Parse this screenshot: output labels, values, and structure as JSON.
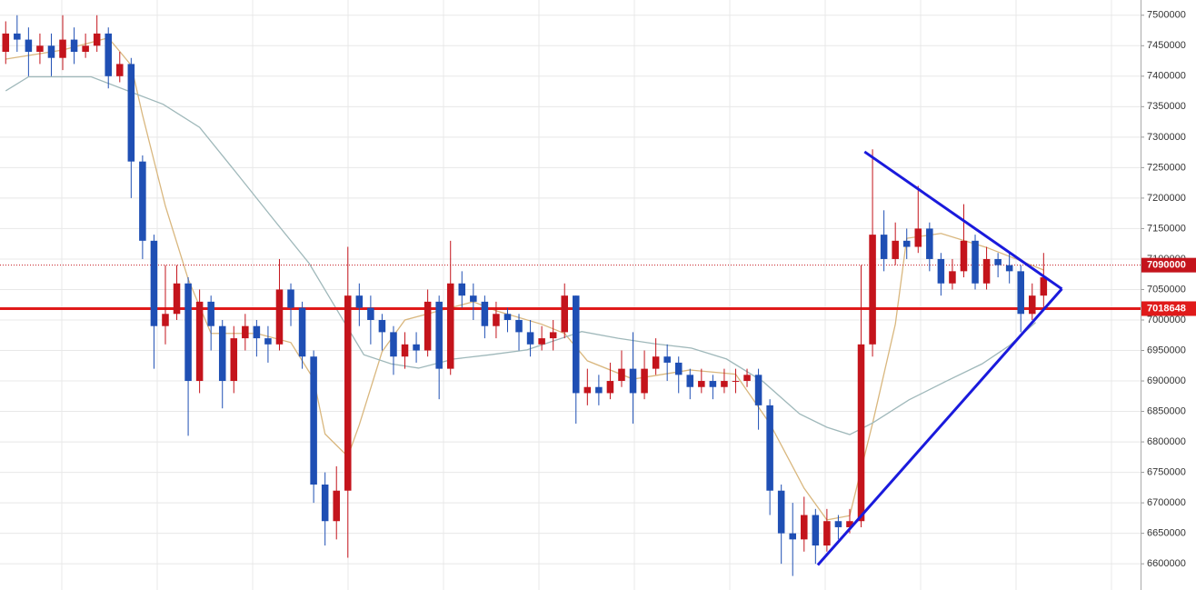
{
  "chart_data": {
    "type": "candlestick",
    "xlim": [
      -0.5,
      99.5
    ],
    "ylim": [
      6557000,
      7525000
    ],
    "yticks": [
      6600000,
      6650000,
      6700000,
      6750000,
      6800000,
      6850000,
      6900000,
      6950000,
      7000000,
      7050000,
      7100000,
      7150000,
      7200000,
      7250000,
      7300000,
      7350000,
      7400000,
      7450000,
      7500000
    ],
    "grid": true,
    "up_color": "#c4141c",
    "down_color": "#1f4fb4",
    "open": [
      7440000,
      7470000,
      7460000,
      7440000,
      7450000,
      7430000,
      7460000,
      7440000,
      7450000,
      7470000,
      7400000,
      7420000,
      7260000,
      7130000,
      6990000,
      7010000,
      7060000,
      6900000,
      7030000,
      6990000,
      6900000,
      6970000,
      6990000,
      6970000,
      6960000,
      7050000,
      7020000,
      6940000,
      6730000,
      6670000,
      6720000,
      7040000,
      7020000,
      7000000,
      6980000,
      6940000,
      6960000,
      6950000,
      7030000,
      6920000,
      7060000,
      7040000,
      7030000,
      6990000,
      7010000,
      7000000,
      6980000,
      6960000,
      6970000,
      6980000,
      7040000,
      6880000,
      6890000,
      6880000,
      6900000,
      6920000,
      6880000,
      6920000,
      6940000,
      6930000,
      6910000,
      6890000,
      6900000,
      6890000,
      6900000,
      6900000,
      6910000,
      6860000,
      6720000,
      6650000,
      6640000,
      6680000,
      6630000,
      6670000,
      6660000,
      6670000,
      6960000,
      7140000,
      7100000,
      7130000,
      7120000,
      7150000,
      7100000,
      7060000,
      7080000,
      7130000,
      7060000,
      7100000,
      7090000,
      7080000,
      7010000,
      7040000
    ],
    "high": [
      7490000,
      7500000,
      7480000,
      7470000,
      7470000,
      7500000,
      7480000,
      7470000,
      7500000,
      7480000,
      7440000,
      7430000,
      7270000,
      7140000,
      7090000,
      7090000,
      7070000,
      7050000,
      7040000,
      7000000,
      6990000,
      7010000,
      7000000,
      6990000,
      7100000,
      7060000,
      7030000,
      6950000,
      6750000,
      6760000,
      7120000,
      7060000,
      7040000,
      7010000,
      6990000,
      6980000,
      6980000,
      7050000,
      7040000,
      7130000,
      7080000,
      7060000,
      7040000,
      7030000,
      7020000,
      7010000,
      7000000,
      6990000,
      7000000,
      7060000,
      7040000,
      6920000,
      6910000,
      6930000,
      6950000,
      6980000,
      6950000,
      6970000,
      6960000,
      6940000,
      6920000,
      6920000,
      6910000,
      6920000,
      6920000,
      6920000,
      6920000,
      6870000,
      6730000,
      6700000,
      6710000,
      6690000,
      6690000,
      6680000,
      6690000,
      7090000,
      7280000,
      7180000,
      7160000,
      7150000,
      7220000,
      7160000,
      7110000,
      7100000,
      7190000,
      7140000,
      7120000,
      7110000,
      7110000,
      7090000,
      7060000,
      7110000
    ],
    "low": [
      7420000,
      7440000,
      7400000,
      7420000,
      7400000,
      7410000,
      7420000,
      7430000,
      7440000,
      7380000,
      7390000,
      7200000,
      7100000,
      6920000,
      6960000,
      7000000,
      6810000,
      6880000,
      6950000,
      6855000,
      6880000,
      6950000,
      6940000,
      6930000,
      6950000,
      6990000,
      6920000,
      6700000,
      6630000,
      6640000,
      6610000,
      6990000,
      6960000,
      6950000,
      6910000,
      6920000,
      6930000,
      6940000,
      6870000,
      6910000,
      7020000,
      7000000,
      6970000,
      6970000,
      6980000,
      6950000,
      6940000,
      6950000,
      6950000,
      6970000,
      6830000,
      6860000,
      6860000,
      6870000,
      6890000,
      6830000,
      6870000,
      6910000,
      6900000,
      6880000,
      6870000,
      6880000,
      6870000,
      6880000,
      6880000,
      6890000,
      6820000,
      6680000,
      6600000,
      6580000,
      6620000,
      6600000,
      6620000,
      6640000,
      6650000,
      6660000,
      6940000,
      7080000,
      7090000,
      7100000,
      7110000,
      7080000,
      7040000,
      7050000,
      7070000,
      7050000,
      7050000,
      7070000,
      7060000,
      6980000,
      7000000,
      7020000
    ],
    "close": [
      7470000,
      7460000,
      7440000,
      7450000,
      7430000,
      7460000,
      7440000,
      7450000,
      7470000,
      7400000,
      7420000,
      7260000,
      7130000,
      6990000,
      7010000,
      7060000,
      6900000,
      7030000,
      6990000,
      6900000,
      6970000,
      6990000,
      6970000,
      6960000,
      7050000,
      7020000,
      6940000,
      6730000,
      6670000,
      6720000,
      7040000,
      7020000,
      7000000,
      6980000,
      6940000,
      6960000,
      6950000,
      7030000,
      6920000,
      7060000,
      7040000,
      7030000,
      6990000,
      7010000,
      7000000,
      6980000,
      6960000,
      6970000,
      6980000,
      7040000,
      6880000,
      6890000,
      6880000,
      6900000,
      6920000,
      6880000,
      6920000,
      6940000,
      6930000,
      6910000,
      6890000,
      6900000,
      6890000,
      6900000,
      6900000,
      6910000,
      6860000,
      6720000,
      6650000,
      6640000,
      6680000,
      6630000,
      6670000,
      6660000,
      6670000,
      6960000,
      7140000,
      7100000,
      7130000,
      7120000,
      7150000,
      7100000,
      7060000,
      7080000,
      7130000,
      7060000,
      7100000,
      7090000,
      7080000,
      7010000,
      7040000,
      7070000
    ],
    "moving_averages": [
      {
        "color": "#d9b77e",
        "x": [
          0,
          5,
          9,
          11,
          12,
          14,
          16,
          18,
          22,
          25,
          27,
          28,
          30,
          31,
          33,
          35,
          38,
          41,
          43,
          47,
          49,
          51,
          55,
          60,
          64,
          67,
          70,
          72,
          74,
          76,
          78,
          79,
          82,
          86,
          89,
          91
        ],
        "values": [
          7428000,
          7443000,
          7463000,
          7418000,
          7336000,
          7187000,
          7067000,
          6978000,
          6978000,
          6963000,
          6903000,
          6813000,
          6776000,
          6828000,
          6948000,
          7000000,
          7015000,
          7030000,
          7015000,
          6993000,
          6978000,
          6933000,
          6903000,
          6918000,
          6911000,
          6830000,
          6724000,
          6672000,
          6679000,
          6830000,
          6993000,
          7134000,
          7142000,
          7119000,
          7097000,
          7082000
        ]
      },
      {
        "color": "#9fb8ba",
        "x": [
          0,
          2,
          7.5,
          10.7,
          13.8,
          17,
          20.2,
          23.4,
          26.6,
          29,
          31.4,
          33.8,
          36.2,
          39.3,
          42.5,
          45.7,
          48.1,
          50.5,
          53.7,
          56.9,
          60.1,
          63.2,
          66.4,
          69.6,
          72,
          74,
          76,
          79.2,
          82.4,
          85.6,
          88,
          90.3
        ],
        "values": [
          7376000,
          7399000,
          7399000,
          7376000,
          7354000,
          7316000,
          7242000,
          7167000,
          7093000,
          7018000,
          6943000,
          6928000,
          6921000,
          6936000,
          6943000,
          6951000,
          6966000,
          6981000,
          6970000,
          6961000,
          6954000,
          6936000,
          6899000,
          6846000,
          6824000,
          6812000,
          6831000,
          6869000,
          6899000,
          6928000,
          6958000,
          6996000
        ]
      }
    ],
    "price_lines": [
      {
        "value": 7090000,
        "style": "dotted",
        "color": "#c4141c"
      },
      {
        "value": 7018648,
        "style": "solid",
        "color": "#e01a1a"
      }
    ],
    "trendlines": {
      "color": "#1a1adc",
      "lines": [
        {
          "x": [
            71.2,
            92.6
          ],
          "y": [
            6598000,
            7051000
          ]
        },
        {
          "x": [
            75.3,
            92.6
          ],
          "y": [
            7276000,
            7051000
          ]
        }
      ]
    }
  }
}
